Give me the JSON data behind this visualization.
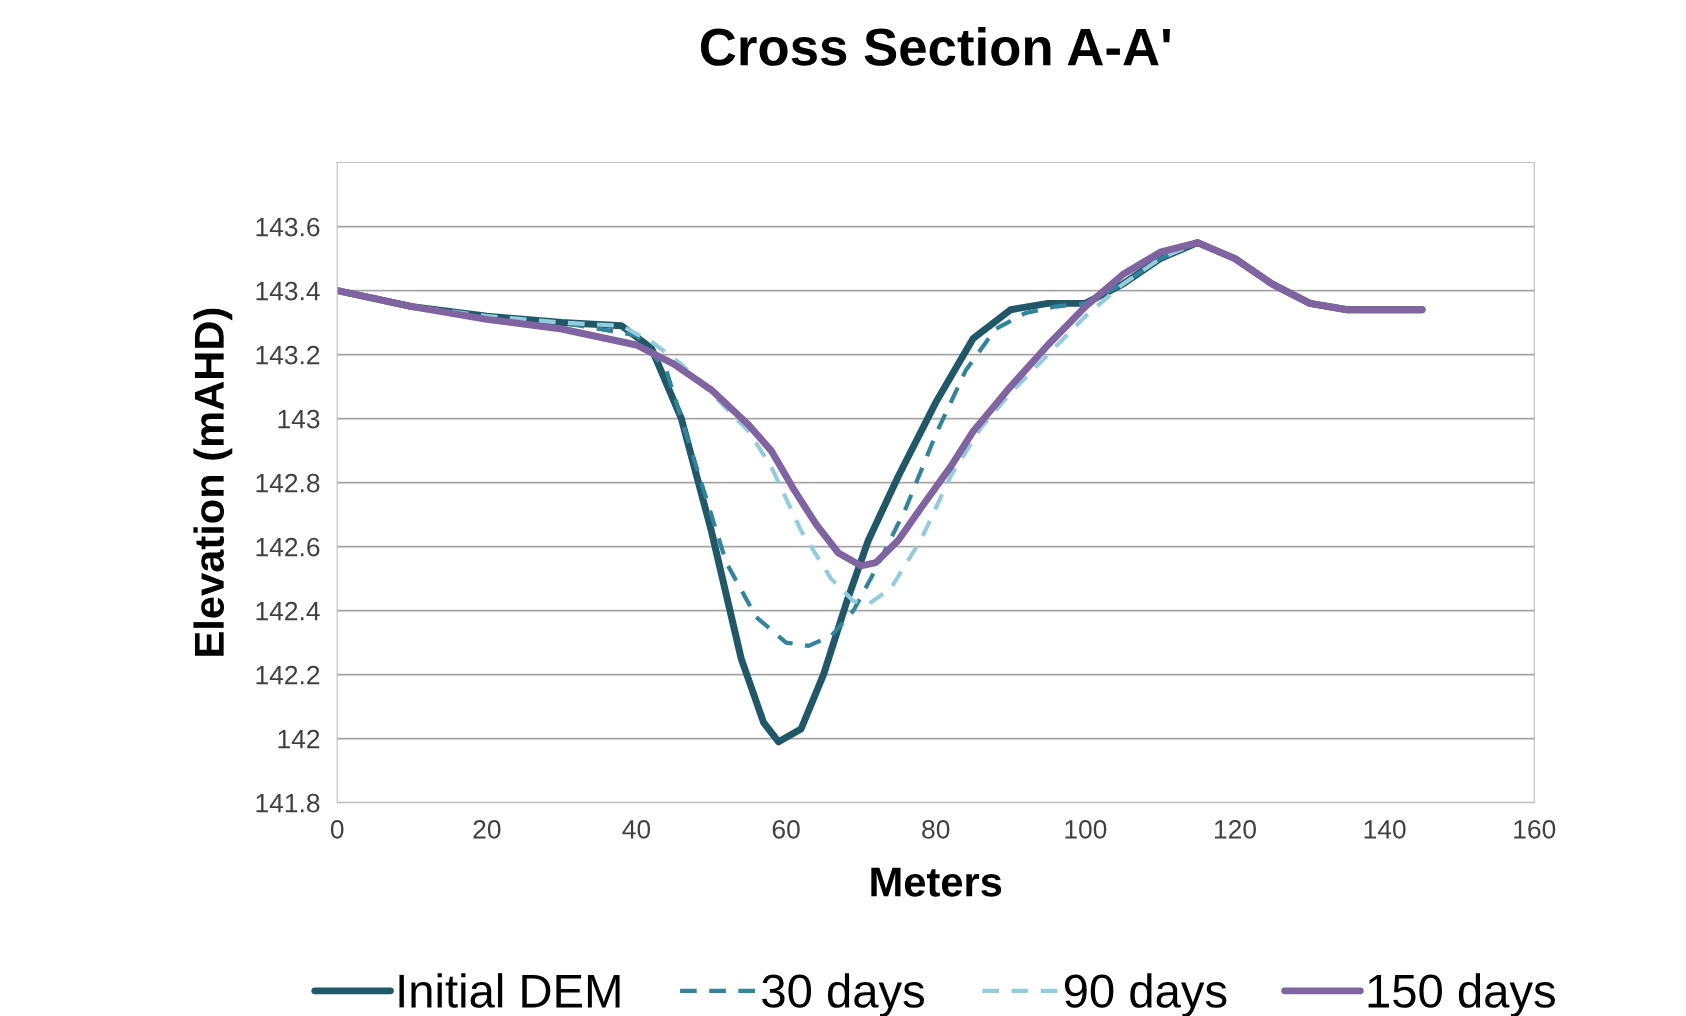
{
  "chart_data": {
    "type": "line",
    "title": "Cross Section A-A'",
    "xlabel": "Meters",
    "ylabel": "Elevation (mAHD)",
    "xlim": [
      0,
      160
    ],
    "xticks": [
      0,
      20,
      40,
      60,
      80,
      100,
      120,
      140,
      160
    ],
    "ylim": [
      141.8,
      143.8
    ],
    "yticks": [
      141.8,
      142,
      142.2,
      142.4,
      142.6,
      142.8,
      143,
      143.2,
      143.4,
      143.6
    ],
    "grid": "y",
    "legend": "bottom",
    "marker": "none",
    "series": [
      {
        "name": "Initial DEM",
        "color": "#215868",
        "line_style": "solid",
        "x": [
          0,
          10,
          20,
          30,
          38,
          42,
          46,
          50,
          54,
          57,
          59,
          62,
          65,
          68,
          71,
          75,
          80,
          85,
          90,
          95,
          100,
          105,
          110,
          115,
          120,
          125,
          130,
          135,
          140,
          145
        ],
        "values": [
          143.4,
          143.35,
          143.32,
          143.3,
          143.29,
          143.22,
          143.0,
          142.65,
          142.25,
          142.05,
          141.99,
          142.03,
          142.2,
          142.42,
          142.62,
          142.82,
          143.05,
          143.25,
          143.34,
          143.36,
          143.36,
          143.42,
          143.5,
          143.55,
          143.5,
          143.42,
          143.36,
          143.34,
          143.34,
          143.34
        ]
      },
      {
        "name": "30 days",
        "color": "#31849b",
        "line_style": "dashed",
        "x": [
          0,
          10,
          20,
          30,
          40,
          44,
          48,
          52,
          56,
          60,
          63,
          66,
          69,
          72,
          76,
          80,
          84,
          88,
          92,
          96,
          100,
          105,
          110,
          115,
          120,
          125,
          130,
          135,
          140,
          145
        ],
        "values": [
          143.4,
          143.35,
          143.32,
          143.3,
          143.26,
          143.15,
          142.85,
          142.55,
          142.38,
          142.3,
          142.29,
          142.32,
          142.4,
          142.53,
          142.72,
          142.95,
          143.15,
          143.28,
          143.33,
          143.35,
          143.36,
          143.42,
          143.5,
          143.55,
          143.5,
          143.42,
          143.36,
          143.34,
          143.34,
          143.34
        ]
      },
      {
        "name": "90 days",
        "color": "#93cddd",
        "line_style": "dashed",
        "x": [
          0,
          10,
          20,
          30,
          38,
          42,
          46,
          50,
          55,
          58,
          62,
          66,
          69,
          71,
          74,
          78,
          82,
          86,
          90,
          95,
          100,
          105,
          110,
          115,
          120,
          125,
          130,
          135,
          140,
          145
        ],
        "values": [
          143.4,
          143.35,
          143.32,
          143.3,
          143.29,
          143.24,
          143.17,
          143.08,
          142.96,
          142.85,
          142.65,
          142.5,
          142.43,
          142.42,
          142.47,
          142.62,
          142.82,
          142.97,
          143.08,
          143.2,
          143.32,
          143.42,
          143.5,
          143.55,
          143.5,
          143.42,
          143.36,
          143.34,
          143.34,
          143.34
        ]
      },
      {
        "name": "150 days",
        "color": "#8064a2",
        "line_style": "solid",
        "x": [
          0,
          10,
          20,
          30,
          40,
          45,
          50,
          55,
          58,
          61,
          64,
          67,
          70,
          72,
          75,
          78,
          82,
          85,
          90,
          95,
          100,
          105,
          110,
          115,
          120,
          125,
          130,
          135,
          140,
          145
        ],
        "values": [
          143.4,
          143.35,
          143.31,
          143.28,
          143.23,
          143.17,
          143.09,
          142.98,
          142.9,
          142.78,
          142.67,
          142.58,
          142.54,
          142.55,
          142.62,
          142.72,
          142.85,
          142.96,
          143.1,
          143.23,
          143.35,
          143.45,
          143.52,
          143.55,
          143.5,
          143.42,
          143.36,
          143.34,
          143.34,
          143.34
        ]
      }
    ]
  }
}
